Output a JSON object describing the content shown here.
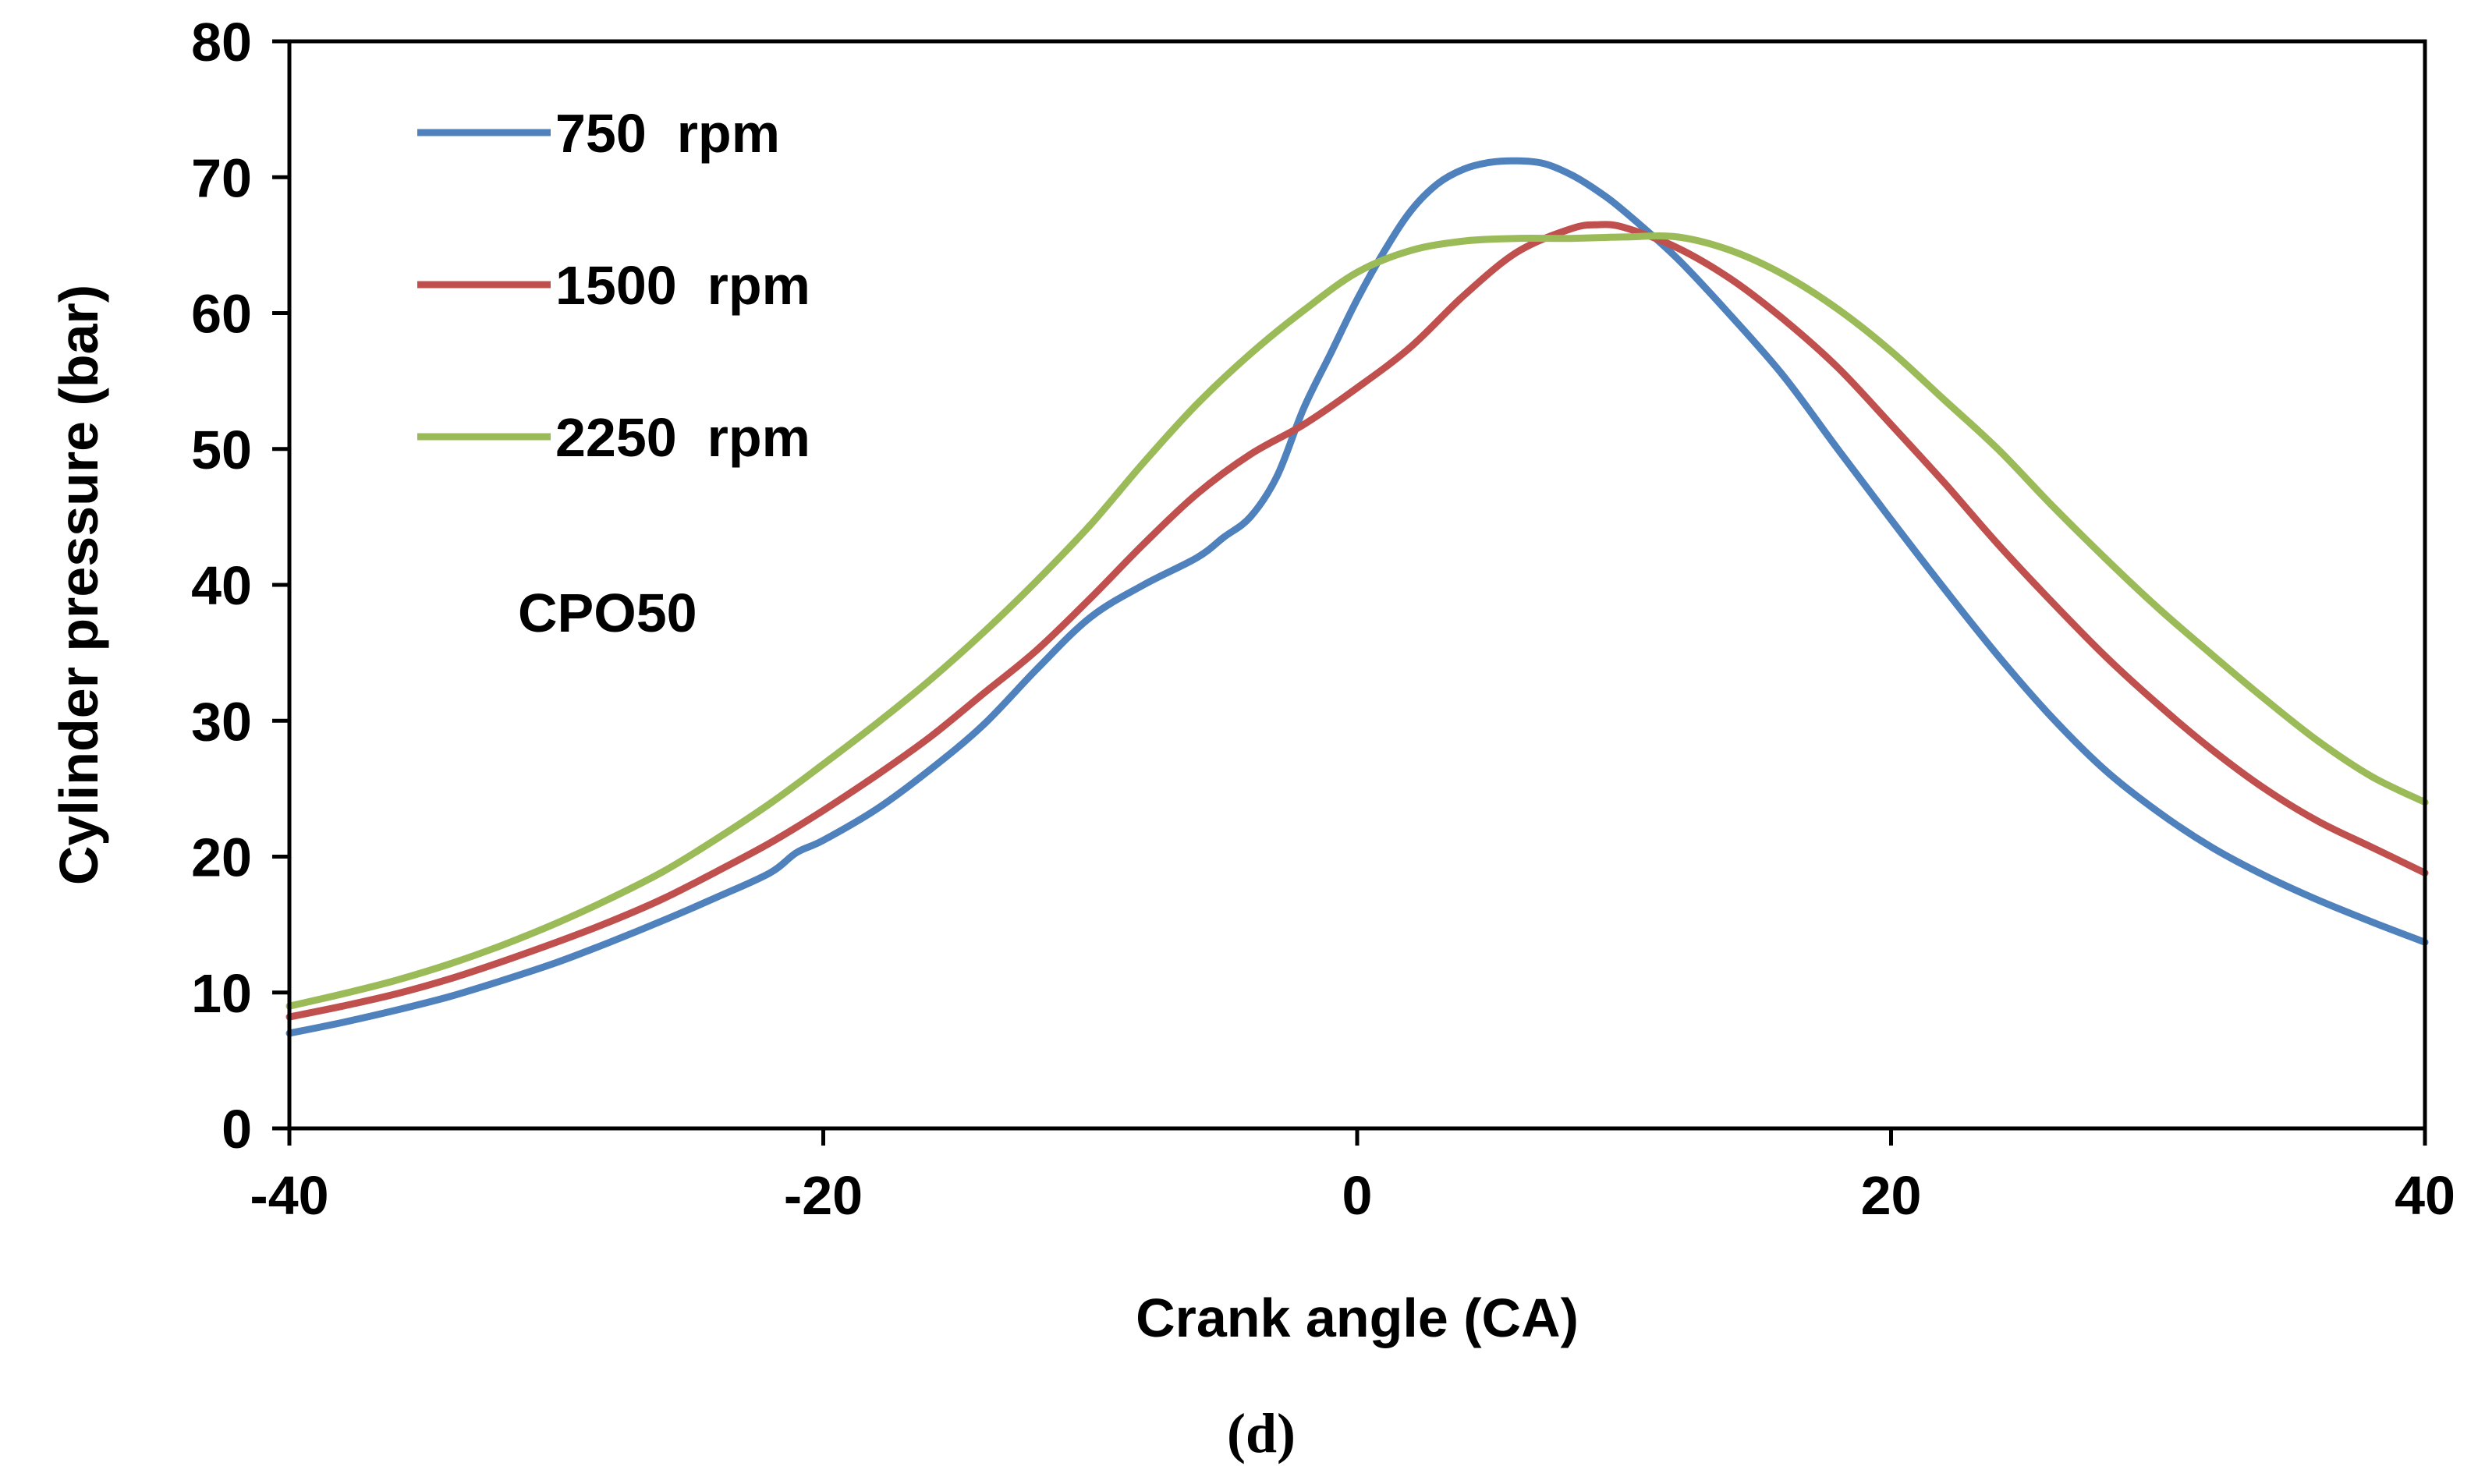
{
  "chart_data": {
    "type": "line",
    "title": "",
    "xlabel": "Crank angle (CA)",
    "ylabel": "Cylinder pressure (bar)",
    "xlim": [
      -40,
      40
    ],
    "ylim": [
      0,
      80
    ],
    "x_ticks": [
      -40,
      -20,
      0,
      20,
      40
    ],
    "x_tick_labels": [
      "-40",
      "-20",
      "0",
      "20",
      "40"
    ],
    "y_ticks": [
      0,
      10,
      20,
      30,
      40,
      50,
      60,
      70,
      80
    ],
    "y_tick_labels": [
      "0",
      "10",
      "20",
      "30",
      "40",
      "50",
      "60",
      "70",
      "80"
    ],
    "grid": false,
    "legend_position": "top-left",
    "annotation": "CPO50",
    "panel_label": "(d)",
    "series": [
      {
        "name": "750  rpm",
        "color": "#4f81bd",
        "x": [
          -40,
          -38,
          -36,
          -34,
          -32,
          -30,
          -28,
          -26,
          -24,
          -22,
          -21,
          -20,
          -18,
          -16,
          -14,
          -12,
          -10,
          -8,
          -6,
          -5,
          -4,
          -3,
          -2,
          -1,
          0,
          1,
          2,
          3,
          4,
          5,
          6,
          7,
          8,
          9,
          10,
          12,
          14,
          16,
          18,
          20,
          22,
          24,
          26,
          28,
          30,
          32,
          34,
          36,
          38,
          40
        ],
        "y": [
          7.0,
          7.8,
          8.7,
          9.7,
          10.9,
          12.2,
          13.7,
          15.3,
          17.0,
          18.8,
          20.3,
          21.2,
          23.5,
          26.4,
          29.7,
          33.8,
          37.6,
          40.0,
          42.0,
          43.5,
          45.0,
          48.0,
          53.0,
          57.0,
          61.0,
          64.5,
          67.5,
          69.5,
          70.6,
          71.1,
          71.2,
          71.0,
          70.2,
          69.0,
          67.5,
          64.0,
          59.8,
          55.3,
          50.0,
          44.8,
          39.7,
          34.8,
          30.3,
          26.4,
          23.3,
          20.7,
          18.6,
          16.8,
          15.2,
          13.7
        ]
      },
      {
        "name": "1500  rpm",
        "color": "#c0504d",
        "x": [
          -40,
          -38,
          -36,
          -34,
          -32,
          -30,
          -28,
          -26,
          -24,
          -22,
          -20,
          -18,
          -16,
          -14,
          -12,
          -10,
          -8,
          -6,
          -4,
          -2,
          0,
          2,
          4,
          6,
          8,
          9,
          10,
          12,
          14,
          16,
          18,
          20,
          22,
          24,
          26,
          28,
          30,
          32,
          34,
          36,
          38,
          40
        ],
        "y": [
          8.2,
          9.0,
          9.9,
          11.0,
          12.3,
          13.7,
          15.2,
          16.9,
          18.9,
          21.0,
          23.4,
          26.0,
          28.8,
          32.0,
          35.2,
          39.0,
          43.0,
          46.7,
          49.6,
          51.8,
          54.5,
          57.5,
          61.3,
          64.5,
          66.2,
          66.5,
          66.3,
          64.8,
          62.5,
          59.5,
          56.0,
          51.8,
          47.5,
          43.0,
          38.8,
          34.8,
          31.2,
          27.9,
          25.0,
          22.6,
          20.7,
          18.8
        ]
      },
      {
        "name": "2250  rpm",
        "color": "#9bbb59",
        "x": [
          -40,
          -38,
          -36,
          -34,
          -32,
          -30,
          -28,
          -26,
          -24,
          -22,
          -20,
          -18,
          -16,
          -14,
          -12,
          -10,
          -8,
          -6,
          -4,
          -2,
          0,
          2,
          4,
          6,
          8,
          10,
          12,
          14,
          16,
          18,
          20,
          22,
          24,
          26,
          28,
          30,
          32,
          34,
          36,
          38,
          40
        ],
        "y": [
          9.0,
          9.9,
          10.9,
          12.1,
          13.5,
          15.1,
          16.9,
          18.9,
          21.3,
          23.9,
          26.8,
          29.8,
          33.0,
          36.5,
          40.3,
          44.4,
          49.0,
          53.3,
          57.0,
          60.2,
          63.0,
          64.6,
          65.3,
          65.5,
          65.5,
          65.6,
          65.6,
          64.6,
          62.8,
          60.3,
          57.2,
          53.6,
          50.0,
          45.9,
          42.0,
          38.3,
          34.9,
          31.6,
          28.5,
          25.9,
          24.0
        ]
      }
    ]
  }
}
